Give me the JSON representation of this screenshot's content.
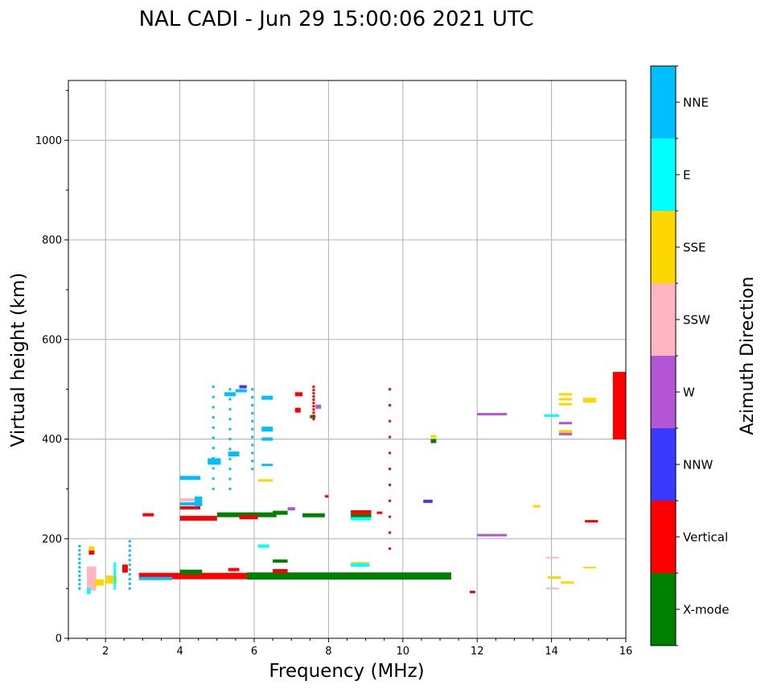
{
  "chart_data": {
    "type": "scatter",
    "title": "NAL CADI - Jun 29 15:00:06 2021 UTC",
    "xlabel": "Frequency (MHz)",
    "ylabel": "Virtual height (km)",
    "xlim": [
      1,
      16
    ],
    "ylim": [
      0,
      1120
    ],
    "grid": true,
    "x_ticks": [
      2,
      4,
      6,
      8,
      10,
      12,
      14,
      16
    ],
    "y_ticks": [
      0,
      200,
      400,
      600,
      800,
      1000
    ],
    "colorbar": {
      "title": "Azimuth Direction",
      "categories": [
        {
          "name": "X-mode",
          "color": "#008000"
        },
        {
          "name": "Vertical",
          "color": "#ff0000"
        },
        {
          "name": "NNW",
          "color": "#3a3aff"
        },
        {
          "name": "W",
          "color": "#b455d6"
        },
        {
          "name": "SSW",
          "color": "#ffb6c1"
        },
        {
          "name": "SSE",
          "color": "#ffd700"
        },
        {
          "name": "E",
          "color": "#00ffff"
        },
        {
          "name": "NNE",
          "color": "#00bfff"
        }
      ]
    },
    "segments": [
      {
        "x0": 2.9,
        "x1": 11.3,
        "y": 125,
        "dir": "Vertical",
        "t": 8
      },
      {
        "x0": 5.8,
        "x1": 11.3,
        "y": 125,
        "dir": "X-mode",
        "t": 9
      },
      {
        "x0": 4.0,
        "x1": 4.6,
        "y": 133,
        "dir": "X-mode",
        "t": 6
      },
      {
        "x0": 2.9,
        "x1": 3.8,
        "y": 120,
        "dir": "NNE",
        "t": 4
      },
      {
        "x0": 6.5,
        "x1": 6.9,
        "y": 135,
        "dir": "Vertical",
        "t": 5
      },
      {
        "x0": 5.3,
        "x1": 5.6,
        "y": 138,
        "dir": "Vertical",
        "t": 4
      },
      {
        "x0": 8.6,
        "x1": 9.1,
        "y": 150,
        "dir": "SSE",
        "t": 4
      },
      {
        "x0": 8.6,
        "x1": 9.1,
        "y": 147,
        "dir": "E",
        "t": 4
      },
      {
        "x0": 6.5,
        "x1": 6.9,
        "y": 155,
        "dir": "X-mode",
        "t": 4
      },
      {
        "x0": 6.1,
        "x1": 6.4,
        "y": 185,
        "dir": "E",
        "t": 4
      },
      {
        "x0": 1.55,
        "x1": 1.7,
        "y": 180,
        "dir": "SSE",
        "t": 6
      },
      {
        "x0": 1.55,
        "x1": 1.7,
        "y": 172,
        "dir": "Vertical",
        "t": 5
      },
      {
        "x0": 1.5,
        "x1": 1.75,
        "y": 120,
        "dir": "SSW",
        "t": 30
      },
      {
        "x0": 1.7,
        "x1": 1.95,
        "y": 112,
        "dir": "SSE",
        "t": 8
      },
      {
        "x0": 1.5,
        "x1": 1.6,
        "y": 95,
        "dir": "E",
        "t": 8
      },
      {
        "x0": 2.0,
        "x1": 2.3,
        "y": 118,
        "dir": "SSE",
        "t": 10
      },
      {
        "x0": 2.45,
        "x1": 2.6,
        "y": 140,
        "dir": "Vertical",
        "t": 10
      },
      {
        "x0": 4.0,
        "x1": 5.0,
        "y": 241,
        "dir": "Vertical",
        "t": 6
      },
      {
        "x0": 5.0,
        "x1": 6.6,
        "y": 248,
        "dir": "X-mode",
        "t": 6
      },
      {
        "x0": 6.5,
        "x1": 6.9,
        "y": 252,
        "dir": "X-mode",
        "t": 5
      },
      {
        "x0": 5.6,
        "x1": 6.1,
        "y": 243,
        "dir": "Vertical",
        "t": 5
      },
      {
        "x0": 7.3,
        "x1": 7.9,
        "y": 247,
        "dir": "X-mode",
        "t": 5
      },
      {
        "x0": 8.6,
        "x1": 9.15,
        "y": 253,
        "dir": "Vertical",
        "t": 5
      },
      {
        "x0": 8.6,
        "x1": 9.15,
        "y": 245,
        "dir": "X-mode",
        "t": 5
      },
      {
        "x0": 8.6,
        "x1": 9.15,
        "y": 240,
        "dir": "E",
        "t": 4
      },
      {
        "x0": 3.0,
        "x1": 3.3,
        "y": 248,
        "dir": "Vertical",
        "t": 4
      },
      {
        "x0": 4.0,
        "x1": 4.55,
        "y": 262,
        "dir": "Vertical",
        "t": 4
      },
      {
        "x0": 4.0,
        "x1": 4.55,
        "y": 270,
        "dir": "NNE",
        "t": 4
      },
      {
        "x0": 4.0,
        "x1": 4.55,
        "y": 278,
        "dir": "SSW",
        "t": 4
      },
      {
        "x0": 4.4,
        "x1": 4.6,
        "y": 275,
        "dir": "NNE",
        "t": 12
      },
      {
        "x0": 4.0,
        "x1": 4.55,
        "y": 322,
        "dir": "NNE",
        "t": 5
      },
      {
        "x0": 4.75,
        "x1": 5.1,
        "y": 355,
        "dir": "NNE",
        "t": 8
      },
      {
        "x0": 5.3,
        "x1": 5.6,
        "y": 370,
        "dir": "NNE",
        "t": 6
      },
      {
        "x0": 5.2,
        "x1": 5.5,
        "y": 490,
        "dir": "NNE",
        "t": 5
      },
      {
        "x0": 5.5,
        "x1": 5.8,
        "y": 497,
        "dir": "NNE",
        "t": 4
      },
      {
        "x0": 6.2,
        "x1": 6.5,
        "y": 483,
        "dir": "NNE",
        "t": 5
      },
      {
        "x0": 6.2,
        "x1": 6.5,
        "y": 420,
        "dir": "NNE",
        "t": 6
      },
      {
        "x0": 6.2,
        "x1": 6.5,
        "y": 400,
        "dir": "NNE",
        "t": 4
      },
      {
        "x0": 6.2,
        "x1": 6.5,
        "y": 348,
        "dir": "NNE",
        "t": 3
      },
      {
        "x0": 6.1,
        "x1": 6.5,
        "y": 317,
        "dir": "SSE",
        "t": 3
      },
      {
        "x0": 5.6,
        "x1": 5.8,
        "y": 505,
        "dir": "NNW",
        "t": 4
      },
      {
        "x0": 7.1,
        "x1": 7.3,
        "y": 490,
        "dir": "Vertical",
        "t": 5
      },
      {
        "x0": 7.1,
        "x1": 7.25,
        "y": 458,
        "dir": "Vertical",
        "t": 6
      },
      {
        "x0": 7.65,
        "x1": 7.8,
        "y": 465,
        "dir": "W",
        "t": 5
      },
      {
        "x0": 7.5,
        "x1": 7.65,
        "y": 445,
        "dir": "X-mode",
        "t": 4
      },
      {
        "x0": 6.9,
        "x1": 7.1,
        "y": 260,
        "dir": "W",
        "t": 4
      },
      {
        "x0": 12.0,
        "x1": 12.8,
        "y": 450,
        "dir": "W",
        "t": 3
      },
      {
        "x0": 12.0,
        "x1": 12.8,
        "y": 207,
        "dir": "W",
        "t": 3
      },
      {
        "x0": 13.8,
        "x1": 14.2,
        "y": 447,
        "dir": "E",
        "t": 3
      },
      {
        "x0": 14.2,
        "x1": 14.55,
        "y": 490,
        "dir": "SSE",
        "t": 3
      },
      {
        "x0": 14.2,
        "x1": 14.55,
        "y": 480,
        "dir": "SSE",
        "t": 3
      },
      {
        "x0": 14.2,
        "x1": 14.55,
        "y": 470,
        "dir": "SSE",
        "t": 3
      },
      {
        "x0": 14.2,
        "x1": 14.55,
        "y": 432,
        "dir": "W",
        "t": 3
      },
      {
        "x0": 14.2,
        "x1": 14.55,
        "y": 415,
        "dir": "SSE",
        "t": 4
      },
      {
        "x0": 14.2,
        "x1": 14.55,
        "y": 410,
        "dir": "W",
        "t": 3
      },
      {
        "x0": 14.85,
        "x1": 15.2,
        "y": 478,
        "dir": "SSE",
        "t": 6
      },
      {
        "x0": 15.65,
        "x1": 16.0,
        "y": 467,
        "dir": "Vertical",
        "t": 84
      },
      {
        "x0": 14.9,
        "x1": 15.25,
        "y": 235,
        "dir": "Vertical",
        "t": 3
      },
      {
        "x0": 13.5,
        "x1": 13.7,
        "y": 265,
        "dir": "SSE",
        "t": 3
      },
      {
        "x0": 13.9,
        "x1": 14.25,
        "y": 122,
        "dir": "SSE",
        "t": 3
      },
      {
        "x0": 14.25,
        "x1": 14.6,
        "y": 112,
        "dir": "SSE",
        "t": 3
      },
      {
        "x0": 13.85,
        "x1": 14.2,
        "y": 162,
        "dir": "SSW",
        "t": 2
      },
      {
        "x0": 13.85,
        "x1": 14.2,
        "y": 100,
        "dir": "SSW",
        "t": 2
      },
      {
        "x0": 14.85,
        "x1": 15.2,
        "y": 142,
        "dir": "SSE",
        "t": 2
      },
      {
        "x0": 11.8,
        "x1": 11.95,
        "y": 93,
        "dir": "Vertical",
        "t": 3
      },
      {
        "x0": 10.55,
        "x1": 10.8,
        "y": 275,
        "dir": "NNW",
        "t": 4
      },
      {
        "x0": 10.75,
        "x1": 10.9,
        "y": 405,
        "dir": "SSE",
        "t": 4
      },
      {
        "x0": 10.75,
        "x1": 10.9,
        "y": 396,
        "dir": "X-mode",
        "t": 5
      },
      {
        "x0": 9.3,
        "x1": 9.45,
        "y": 252,
        "dir": "Vertical",
        "t": 3
      },
      {
        "x0": 7.9,
        "x1": 8.0,
        "y": 285,
        "dir": "Vertical",
        "t": 3
      },
      {
        "x0": 8.8,
        "x1": 9.0,
        "y": 148,
        "dir": "E",
        "t": 4
      }
    ],
    "dots": [
      {
        "x": 9.65,
        "y0": 180,
        "y1": 500,
        "dir": "Vertical"
      },
      {
        "x": 5.35,
        "y0": 300,
        "y1": 500,
        "dir": "NNE"
      },
      {
        "x": 5.95,
        "y0": 340,
        "y1": 500,
        "dir": "NNE"
      },
      {
        "x": 4.9,
        "y0": 300,
        "y1": 505,
        "dir": "NNE"
      },
      {
        "x": 2.65,
        "y0": 100,
        "y1": 195,
        "dir": "NNE"
      },
      {
        "x": 2.25,
        "y0": 100,
        "y1": 150,
        "dir": "E"
      },
      {
        "x": 1.3,
        "y0": 100,
        "y1": 185,
        "dir": "NNE"
      },
      {
        "x": 7.6,
        "y0": 440,
        "y1": 505,
        "dir": "Vertical"
      }
    ]
  }
}
